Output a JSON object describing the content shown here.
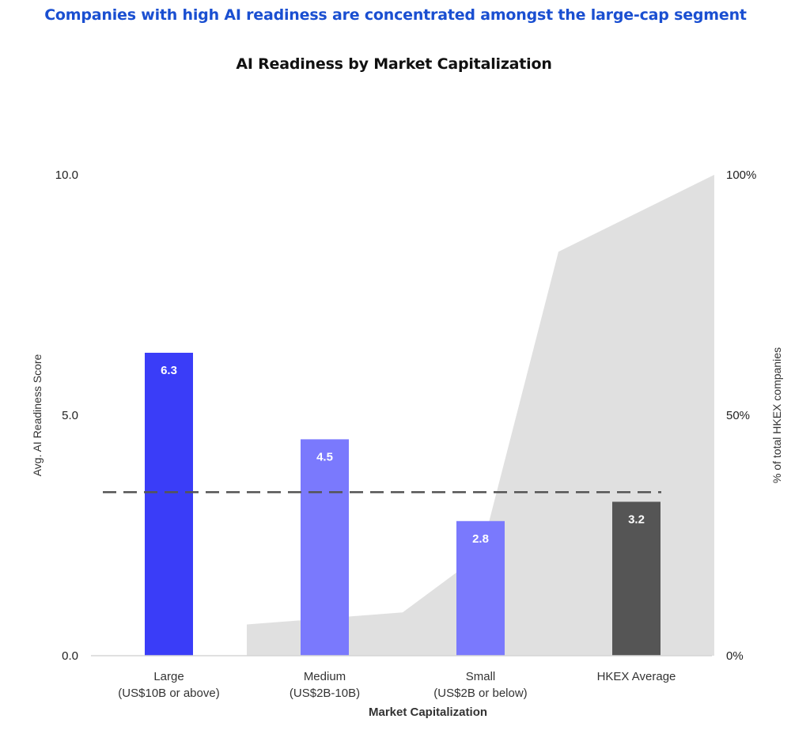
{
  "headline": "Companies with high AI readiness are concentrated amongst the large-cap segment",
  "chart_data": {
    "type": "bar",
    "title": "AI Readiness by Market Capitalization",
    "xlabel": "Market Capitalization",
    "ylabel": "Avg. AI Readiness Score",
    "y2label": "% of total HKEX companies",
    "categories": [
      [
        "Large",
        "(US$10B or above)"
      ],
      [
        "Medium",
        "(US$2B-10B)"
      ],
      [
        "Small",
        "(US$2B or below)"
      ],
      [
        "HKEX Average"
      ]
    ],
    "values": [
      6.3,
      4.5,
      2.8,
      3.2
    ],
    "value_labels": [
      "6.3",
      "4.5",
      "2.8",
      "3.2"
    ],
    "bar_colors": [
      "#3a3df8",
      "#7a79fd",
      "#7a79fd",
      "#555555"
    ],
    "ylim": [
      0,
      10
    ],
    "y_ticks": [
      "0.0",
      "5.0",
      "10.0"
    ],
    "y2lim": [
      0,
      100
    ],
    "y2_ticks": [
      "0%",
      "50%",
      "100%"
    ],
    "area_series": {
      "color": "#e0e0e0",
      "points": [
        [
          0.5,
          6.5
        ],
        [
          1.5,
          9
        ],
        [
          2.0,
          21
        ],
        [
          2.5,
          84
        ],
        [
          3.5,
          100
        ]
      ]
    },
    "reference_line": {
      "value": 3.4,
      "style": "dashed",
      "color": "#555555"
    }
  }
}
